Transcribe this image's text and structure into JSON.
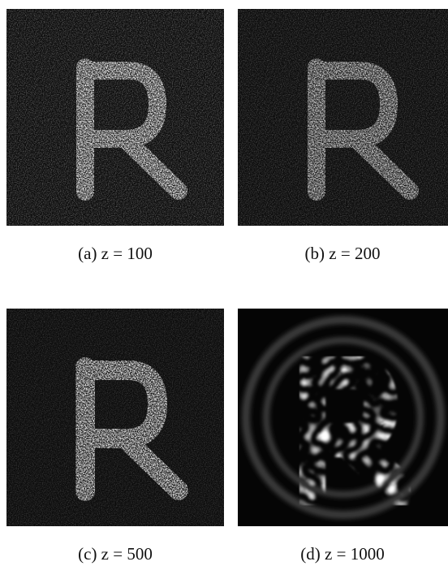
{
  "panels": [
    {
      "caption": "(a) z = 100"
    },
    {
      "caption": "(b) z = 200"
    },
    {
      "caption": "(c) z = 500"
    },
    {
      "caption": "(d) z = 1000"
    }
  ]
}
